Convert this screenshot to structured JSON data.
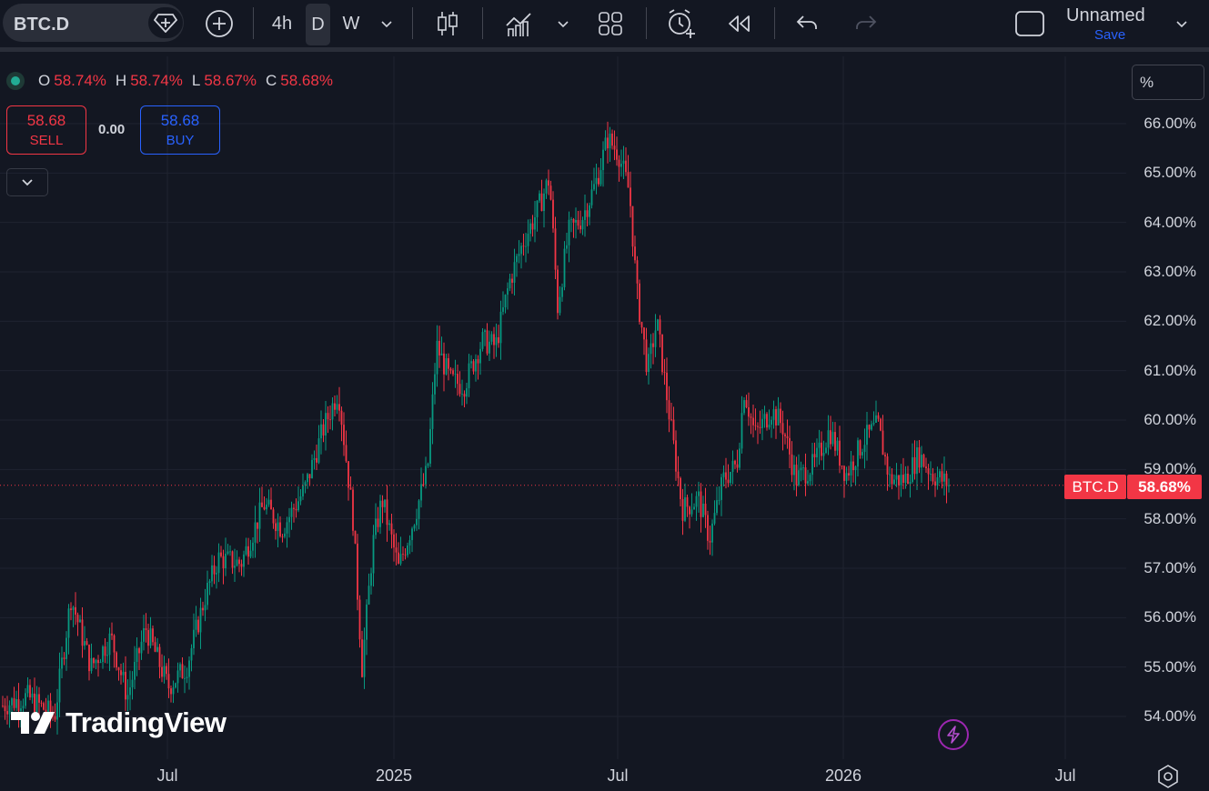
{
  "toolbar": {
    "symbol": "BTC.D",
    "intervals": [
      "4h",
      "D",
      "W"
    ],
    "active_interval": "D",
    "layout_name": "Unnamed",
    "save_label": "Save"
  },
  "legend": {
    "open_key": "O",
    "open": "58.74%",
    "high_key": "H",
    "high": "58.74%",
    "low_key": "L",
    "low": "58.67%",
    "close_key": "C",
    "close": "58.68%"
  },
  "trade": {
    "sell_price": "58.68",
    "sell_label": "SELL",
    "spread": "0.00",
    "buy_price": "58.68",
    "buy_label": "BUY"
  },
  "scale_mode": "%",
  "price_tag": {
    "symbol": "BTC.D",
    "value": "58.68%",
    "color": "#f23645"
  },
  "brand": {
    "name": "TradingView"
  },
  "colors": {
    "up": "#089981",
    "down": "#f23645",
    "background": "#131722",
    "accent": "#2962ff"
  },
  "chart_data": {
    "type": "candlestick",
    "symbol": "BTC.D",
    "unit": "%",
    "y_ticks": [
      "66.00%",
      "65.00%",
      "64.00%",
      "63.00%",
      "62.00%",
      "61.00%",
      "60.00%",
      "59.00%",
      "58.00%",
      "57.00%",
      "56.00%",
      "55.00%",
      "54.00%"
    ],
    "x_ticks": [
      "Jul",
      "2025",
      "Jul",
      "2026",
      "Jul"
    ],
    "ylim": [
      53.2,
      66.8
    ],
    "grid": true,
    "last_price": 58.68,
    "close_path": [
      [
        0,
        54.2
      ],
      [
        30,
        54.4
      ],
      [
        60,
        54.0
      ],
      [
        78,
        56.4
      ],
      [
        100,
        55.0
      ],
      [
        122,
        55.6
      ],
      [
        140,
        54.4
      ],
      [
        160,
        55.8
      ],
      [
        185,
        54.6
      ],
      [
        205,
        55.0
      ],
      [
        225,
        56.4
      ],
      [
        240,
        57.2
      ],
      [
        265,
        57.1
      ],
      [
        290,
        58.3
      ],
      [
        310,
        57.8
      ],
      [
        335,
        58.6
      ],
      [
        355,
        59.8
      ],
      [
        372,
        60.6
      ],
      [
        388,
        58.0
      ],
      [
        398,
        55.0
      ],
      [
        410,
        57.5
      ],
      [
        420,
        58.4
      ],
      [
        438,
        57.0
      ],
      [
        455,
        58.0
      ],
      [
        470,
        59.0
      ],
      [
        480,
        61.5
      ],
      [
        495,
        60.8
      ],
      [
        510,
        60.7
      ],
      [
        530,
        61.6
      ],
      [
        545,
        61.5
      ],
      [
        560,
        62.8
      ],
      [
        575,
        63.6
      ],
      [
        590,
        64.2
      ],
      [
        604,
        64.9
      ],
      [
        613,
        62.3
      ],
      [
        625,
        63.8
      ],
      [
        640,
        64.1
      ],
      [
        655,
        64.8
      ],
      [
        668,
        65.7
      ],
      [
        680,
        65.4
      ],
      [
        692,
        64.6
      ],
      [
        700,
        62.6
      ],
      [
        712,
        61.0
      ],
      [
        722,
        62.0
      ],
      [
        735,
        60.2
      ],
      [
        750,
        58.2
      ],
      [
        768,
        58.4
      ],
      [
        780,
        57.6
      ],
      [
        795,
        58.8
      ],
      [
        810,
        59.1
      ],
      [
        818,
        60.6
      ],
      [
        830,
        59.7
      ],
      [
        848,
        60.2
      ],
      [
        860,
        59.9
      ],
      [
        875,
        58.8
      ],
      [
        895,
        59.1
      ],
      [
        912,
        59.8
      ],
      [
        930,
        58.9
      ],
      [
        950,
        59.6
      ],
      [
        965,
        59.9
      ],
      [
        978,
        58.8
      ],
      [
        995,
        58.8
      ],
      [
        1010,
        59.3
      ],
      [
        1025,
        58.9
      ],
      [
        1045,
        58.68
      ]
    ]
  }
}
